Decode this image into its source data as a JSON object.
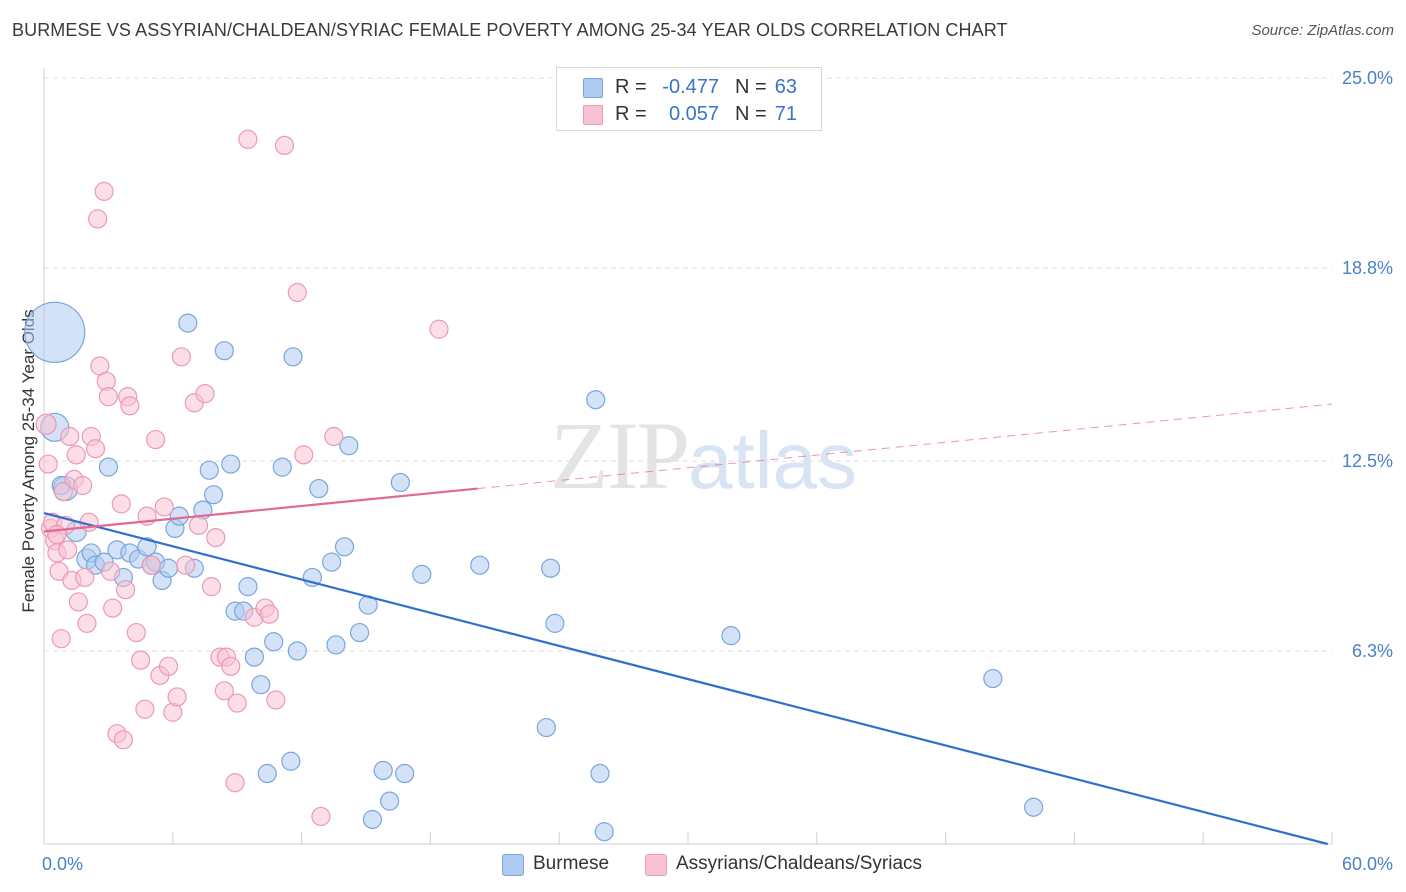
{
  "header": {
    "title": "BURMESE VS ASSYRIAN/CHALDEAN/SYRIAC FEMALE POVERTY AMONG 25-34 YEAR OLDS CORRELATION CHART",
    "source": "Source: ZipAtlas.com"
  },
  "watermark": {
    "zip": "ZIP",
    "atlas": "atlas"
  },
  "legend_top": {
    "rows": [
      {
        "r_label": "R =",
        "r_value": "-0.477",
        "n_label": "N =",
        "n_value": "63"
      },
      {
        "r_label": "R =",
        "r_value": "0.057",
        "n_label": "N =",
        "n_value": "71"
      }
    ]
  },
  "legend_bottom": {
    "items": [
      {
        "label": "Burmese"
      },
      {
        "label": "Assyrians/Chaldeans/Syriacs"
      }
    ]
  },
  "colors": {
    "blue_fill": "#aecbf0",
    "blue_stroke": "#7aa6dc",
    "blue_line": "#2f6fcd",
    "pink_fill": "#f7c3d3",
    "pink_stroke": "#ec9ab4",
    "pink_line": "#e06a94",
    "tick_text": "#4a80c8",
    "grid": "#dcdcdc"
  },
  "chart_data": {
    "type": "scatter",
    "title": "BURMESE VS ASSYRIAN/CHALDEAN/SYRIAC FEMALE POVERTY AMONG 25-34 YEAR OLDS CORRELATION CHART",
    "xlabel": "",
    "ylabel": "Female Poverty Among 25-34 Year Olds",
    "xlim": [
      0,
      60
    ],
    "ylim": [
      0,
      25.0
    ],
    "x_tick_labels": [
      "0.0%",
      "60.0%"
    ],
    "y_ticks": [
      6.3,
      12.5,
      18.8,
      25.0
    ],
    "y_tick_labels": [
      "6.3%",
      "12.5%",
      "18.8%",
      "25.0%"
    ],
    "grid": "horizontal dashed",
    "legend": "top-center",
    "series": [
      {
        "name": "Burmese",
        "color": "#aecbf0",
        "trend": {
          "x": [
            0,
            59.8
          ],
          "y": [
            10.8,
            0.0
          ],
          "dashed_x": null
        },
        "points": [
          [
            0.5,
            16.7,
            30
          ],
          [
            0.5,
            13.6,
            14
          ],
          [
            1.0,
            11.6,
            12
          ],
          [
            1.5,
            10.2,
            10
          ],
          [
            2.0,
            9.3,
            10
          ],
          [
            2.2,
            9.5,
            9
          ],
          [
            2.4,
            9.1,
            9
          ],
          [
            3.0,
            12.3,
            9
          ],
          [
            3.4,
            9.6,
            9
          ],
          [
            3.7,
            8.7,
            9
          ],
          [
            4.0,
            9.5,
            9
          ],
          [
            4.4,
            9.3,
            9
          ],
          [
            4.8,
            9.7,
            9
          ],
          [
            5.0,
            9.1,
            9
          ],
          [
            5.2,
            9.2,
            9
          ],
          [
            5.5,
            8.6,
            9
          ],
          [
            5.8,
            9.0,
            9
          ],
          [
            6.1,
            10.3,
            9
          ],
          [
            6.3,
            10.7,
            9
          ],
          [
            6.7,
            17.0,
            9
          ],
          [
            7.0,
            9.0,
            9
          ],
          [
            7.4,
            10.9,
            9
          ],
          [
            7.7,
            12.2,
            9
          ],
          [
            7.9,
            11.4,
            9
          ],
          [
            8.4,
            16.1,
            9
          ],
          [
            8.7,
            12.4,
            9
          ],
          [
            8.9,
            7.6,
            9
          ],
          [
            9.3,
            7.6,
            9
          ],
          [
            9.5,
            8.4,
            9
          ],
          [
            9.8,
            6.1,
            9
          ],
          [
            10.1,
            5.2,
            9
          ],
          [
            10.4,
            2.3,
            9
          ],
          [
            10.7,
            6.6,
            9
          ],
          [
            11.1,
            12.3,
            9
          ],
          [
            11.5,
            2.7,
            9
          ],
          [
            11.6,
            15.9,
            9
          ],
          [
            11.8,
            6.3,
            9
          ],
          [
            12.5,
            8.7,
            9
          ],
          [
            12.8,
            11.6,
            9
          ],
          [
            13.4,
            9.2,
            9
          ],
          [
            13.6,
            6.5,
            9
          ],
          [
            14.0,
            9.7,
            9
          ],
          [
            14.2,
            13.0,
            9
          ],
          [
            14.7,
            6.9,
            9
          ],
          [
            15.1,
            7.8,
            9
          ],
          [
            15.3,
            0.8,
            9
          ],
          [
            15.8,
            2.4,
            9
          ],
          [
            16.1,
            1.4,
            9
          ],
          [
            16.6,
            11.8,
            9
          ],
          [
            16.8,
            2.3,
            9
          ],
          [
            17.6,
            8.8,
            9
          ],
          [
            20.3,
            9.1,
            9
          ],
          [
            23.4,
            3.8,
            9
          ],
          [
            23.6,
            9.0,
            9
          ],
          [
            23.8,
            7.2,
            9
          ],
          [
            25.7,
            14.5,
            9
          ],
          [
            25.9,
            2.3,
            9
          ],
          [
            26.1,
            0.4,
            9
          ],
          [
            32.0,
            6.8,
            9
          ],
          [
            44.2,
            5.4,
            9
          ],
          [
            46.1,
            1.2,
            9
          ],
          [
            0.8,
            11.7,
            9
          ],
          [
            2.8,
            9.2,
            9
          ]
        ]
      },
      {
        "name": "Assyrians/Chaldeans/Syriacs",
        "color": "#f7c3d3",
        "trend": {
          "x": [
            0,
            20.2
          ],
          "y": [
            10.2,
            11.6
          ],
          "dashed_x": [
            20.2,
            60
          ]
        },
        "points": [
          [
            0.1,
            13.7,
            10
          ],
          [
            0.2,
            12.4,
            9
          ],
          [
            0.3,
            10.3,
            9
          ],
          [
            0.4,
            10.5,
            9
          ],
          [
            0.5,
            9.9,
            9
          ],
          [
            0.6,
            9.5,
            9
          ],
          [
            0.7,
            8.9,
            9
          ],
          [
            0.8,
            6.7,
            9
          ],
          [
            0.9,
            11.5,
            9
          ],
          [
            1.0,
            10.4,
            9
          ],
          [
            1.1,
            9.6,
            9
          ],
          [
            1.2,
            13.3,
            9
          ],
          [
            1.3,
            8.6,
            9
          ],
          [
            1.4,
            11.9,
            9
          ],
          [
            1.5,
            12.7,
            9
          ],
          [
            1.6,
            7.9,
            9
          ],
          [
            1.8,
            11.7,
            9
          ],
          [
            1.9,
            8.7,
            9
          ],
          [
            2.0,
            7.2,
            9
          ],
          [
            2.1,
            10.5,
            9
          ],
          [
            2.2,
            13.3,
            9
          ],
          [
            2.4,
            12.9,
            9
          ],
          [
            2.5,
            20.4,
            9
          ],
          [
            2.6,
            15.6,
            9
          ],
          [
            2.8,
            21.3,
            9
          ],
          [
            2.9,
            15.1,
            9
          ],
          [
            3.0,
            14.6,
            9
          ],
          [
            3.1,
            8.9,
            9
          ],
          [
            3.2,
            7.7,
            9
          ],
          [
            3.4,
            3.6,
            9
          ],
          [
            3.6,
            11.1,
            9
          ],
          [
            3.7,
            3.4,
            9
          ],
          [
            3.8,
            8.3,
            9
          ],
          [
            3.9,
            14.6,
            9
          ],
          [
            4.0,
            14.3,
            9
          ],
          [
            4.3,
            6.9,
            9
          ],
          [
            4.5,
            6.0,
            9
          ],
          [
            4.7,
            4.4,
            9
          ],
          [
            4.8,
            10.7,
            9
          ],
          [
            5.0,
            9.1,
            9
          ],
          [
            5.2,
            13.2,
            9
          ],
          [
            5.4,
            5.5,
            9
          ],
          [
            5.6,
            11.0,
            9
          ],
          [
            5.8,
            5.8,
            9
          ],
          [
            6.0,
            4.3,
            9
          ],
          [
            6.2,
            4.8,
            9
          ],
          [
            6.4,
            15.9,
            9
          ],
          [
            6.6,
            9.1,
            9
          ],
          [
            7.0,
            14.4,
            9
          ],
          [
            7.2,
            10.4,
            9
          ],
          [
            7.5,
            14.7,
            9
          ],
          [
            7.8,
            8.4,
            9
          ],
          [
            8.0,
            10.0,
            9
          ],
          [
            8.2,
            6.1,
            9
          ],
          [
            8.4,
            5.0,
            9
          ],
          [
            8.5,
            6.1,
            9
          ],
          [
            8.7,
            5.8,
            9
          ],
          [
            8.9,
            2.0,
            9
          ],
          [
            9.0,
            4.6,
            9
          ],
          [
            9.5,
            23.0,
            9
          ],
          [
            9.8,
            7.4,
            9
          ],
          [
            10.3,
            7.7,
            9
          ],
          [
            10.5,
            7.5,
            9
          ],
          [
            10.8,
            4.7,
            9
          ],
          [
            11.2,
            22.8,
            9
          ],
          [
            11.8,
            18.0,
            9
          ],
          [
            12.1,
            12.7,
            9
          ],
          [
            12.9,
            0.9,
            9
          ],
          [
            13.5,
            13.3,
            9
          ],
          [
            18.4,
            16.8,
            9
          ],
          [
            0.6,
            10.1,
            9
          ]
        ]
      }
    ]
  }
}
